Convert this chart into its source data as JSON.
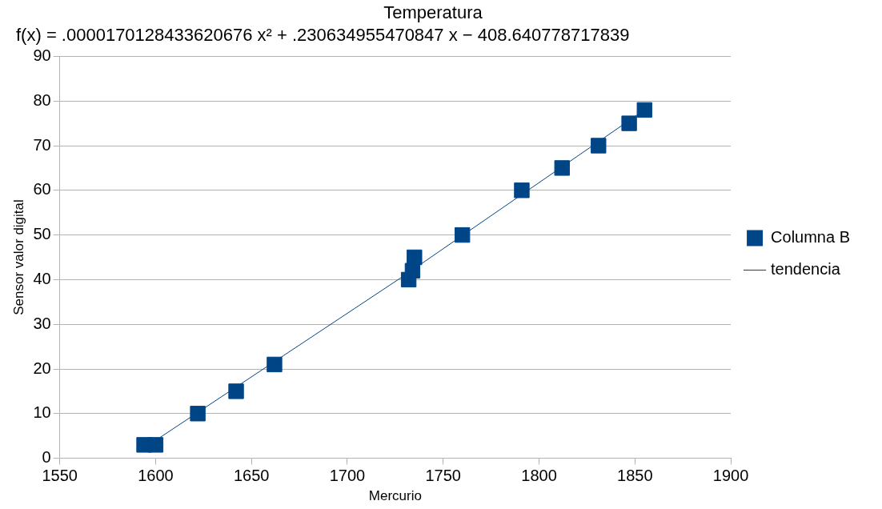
{
  "chart_data": {
    "type": "scatter",
    "title": "Temperatura",
    "xlabel": "Mercurio",
    "ylabel": "Sensor valor digital",
    "annotations": [
      "f(x) = .0000170128433620676 x² + .230634955470847 x − 408.640778717839"
    ],
    "series": [
      {
        "name": "Columna B",
        "type": "scatter",
        "color": "#004586",
        "marker": "square",
        "x": [
          1594,
          1600,
          1622,
          1642,
          1662,
          1732,
          1734,
          1735,
          1760,
          1791,
          1812,
          1831,
          1847,
          1855
        ],
        "values": [
          3,
          3,
          10,
          15,
          21,
          40,
          42,
          45,
          50,
          60,
          65,
          70,
          75,
          78
        ]
      },
      {
        "name": "tendencia",
        "type": "line",
        "color": "#004586",
        "marker": "none",
        "line_style": "solid",
        "x": [
          1600,
          1730,
          1855
        ],
        "values": [
          4,
          41,
          78
        ]
      }
    ],
    "xlim": [
      1550,
      1900
    ],
    "xticks": [
      1550,
      1600,
      1650,
      1700,
      1750,
      1800,
      1850,
      1900
    ],
    "ylim": [
      0,
      90
    ],
    "yticks": [
      0,
      10,
      20,
      30,
      40,
      50,
      60,
      70,
      80,
      90
    ],
    "grid": "y",
    "legend": "right"
  }
}
